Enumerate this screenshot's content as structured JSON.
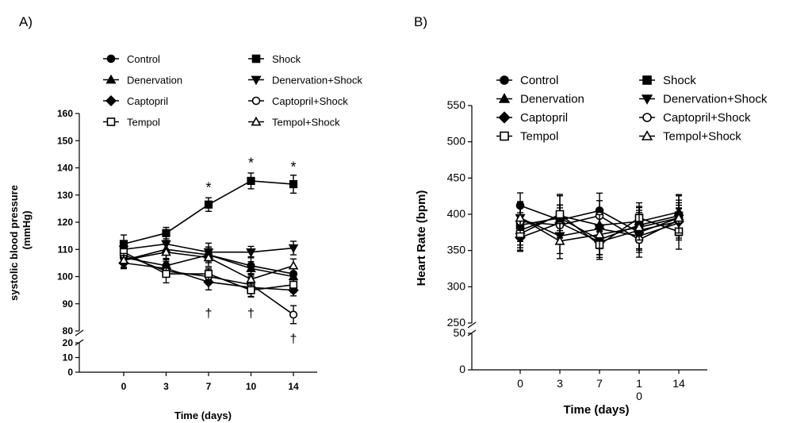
{
  "chart_data": [
    {
      "panel": "A)",
      "type": "line",
      "xlabel": "Time (days)",
      "ylabel_line1": "systolic blood pressure",
      "ylabel_line2": "(mmHg)",
      "x": [
        "0",
        "3",
        "7",
        "10",
        "14"
      ],
      "yticks_upper": [
        "80",
        "90",
        "100",
        "110",
        "120",
        "130",
        "140",
        "150",
        "160"
      ],
      "yticks_lower": [
        "0",
        "10",
        "20"
      ],
      "ylim_upper": [
        80,
        160
      ],
      "ylim_lower": [
        0,
        20
      ],
      "y_axis_break": true,
      "grid": false,
      "legend_position": "top",
      "series": [
        {
          "name": "Control",
          "marker": "circle-filled",
          "values": [
            107,
            104,
            108,
            104,
            101
          ]
        },
        {
          "name": "Shock",
          "marker": "square-filled",
          "values": [
            112,
            116,
            126.5,
            135.2,
            134
          ]
        },
        {
          "name": "Denervation",
          "marker": "triangle-up-filled",
          "values": [
            106,
            110,
            108,
            103,
            100
          ]
        },
        {
          "name": "Denervation+Shock",
          "marker": "triangle-down-filled",
          "values": [
            110,
            112,
            109,
            109,
            110.5
          ]
        },
        {
          "name": "Captopril",
          "marker": "diamond-filled",
          "values": [
            105,
            103,
            98,
            96,
            95
          ]
        },
        {
          "name": "Captopril+Shock",
          "marker": "circle-open",
          "values": [
            108,
            102,
            100,
            97,
            86
          ]
        },
        {
          "name": "Tempol",
          "marker": "square-open",
          "values": [
            109,
            101,
            101,
            95,
            97
          ]
        },
        {
          "name": "Tempol+Shock",
          "marker": "triangle-up-open",
          "values": [
            106,
            109,
            107,
            99,
            104
          ]
        }
      ],
      "error_bar_approx": 3,
      "annotations": [
        {
          "text": "*",
          "x": "7",
          "y": 131
        },
        {
          "text": "*",
          "x": "10",
          "y": 140
        },
        {
          "text": "*",
          "x": "14",
          "y": 138.5
        },
        {
          "text": "†",
          "x": "7",
          "y": 85
        },
        {
          "text": "†",
          "x": "10",
          "y": 85
        },
        {
          "text": "†",
          "x": "14",
          "y": 77
        }
      ]
    },
    {
      "panel": "B)",
      "type": "line",
      "xlabel": "Time (days)",
      "ylabel": "Heart Rate (bpm)",
      "x": [
        "0",
        "3",
        "7",
        "1\n0",
        "14"
      ],
      "x_tick_label_3_line1": "1",
      "x_tick_label_3_line2": "0",
      "yticks_upper": [
        "250",
        "300",
        "350",
        "400",
        "450",
        "500",
        "550"
      ],
      "yticks_lower": [
        "0",
        "50"
      ],
      "ylim_upper": [
        250,
        550
      ],
      "ylim_lower": [
        0,
        50
      ],
      "y_axis_break": true,
      "grid": false,
      "legend_position": "top",
      "series": [
        {
          "name": "Control",
          "marker": "circle-filled",
          "values": [
            412,
            392,
            405,
            375,
            395
          ]
        },
        {
          "name": "Shock",
          "marker": "square-filled",
          "values": [
            385,
            395,
            365,
            385,
            398
          ]
        },
        {
          "name": "Denervation",
          "marker": "triangle-up-filled",
          "values": [
            378,
            398,
            385,
            390,
            403
          ]
        },
        {
          "name": "Denervation+Shock",
          "marker": "triangle-down-filled",
          "values": [
            395,
            370,
            380,
            370,
            388
          ]
        },
        {
          "name": "Captopril",
          "marker": "diamond-filled",
          "values": [
            368,
            388,
            362,
            378,
            390
          ]
        },
        {
          "name": "Captopril+Shock",
          "marker": "circle-open",
          "values": [
            390,
            385,
            398,
            365,
            392
          ]
        },
        {
          "name": "Tempol",
          "marker": "square-open",
          "values": [
            373,
            400,
            358,
            395,
            376
          ]
        },
        {
          "name": "Tempol+Shock",
          "marker": "triangle-up-open",
          "values": [
            395,
            363,
            372,
            382,
            395
          ]
        }
      ],
      "error_bar_approx": 25
    }
  ]
}
